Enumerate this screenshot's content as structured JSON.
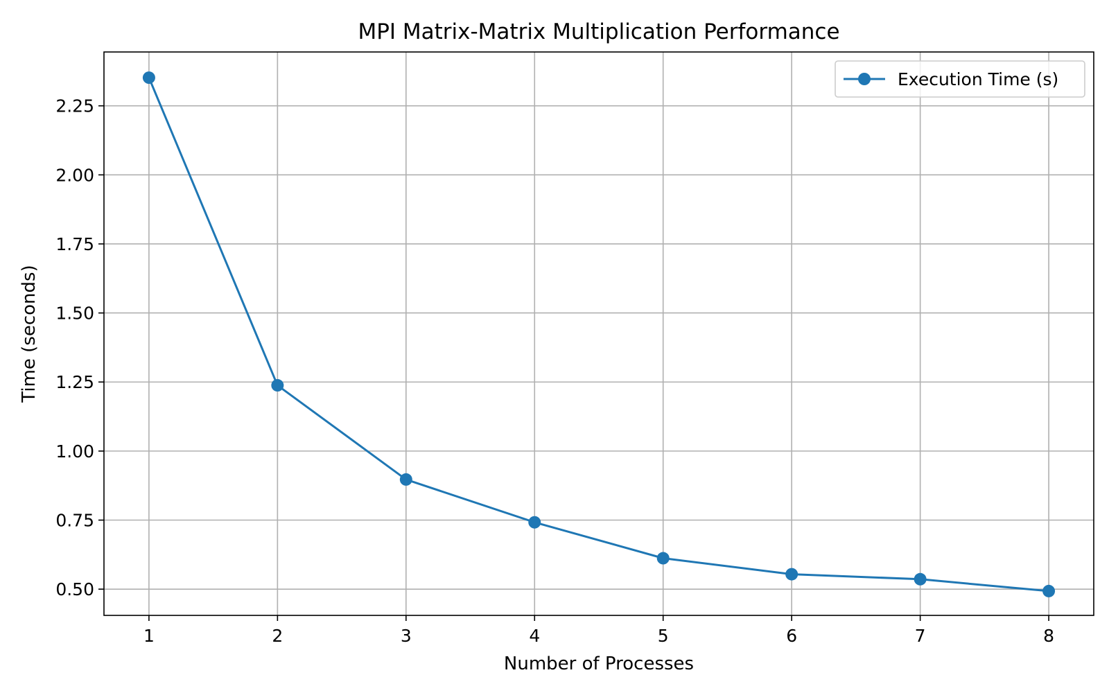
{
  "chart_data": {
    "type": "line",
    "title": "MPI Matrix-Matrix Multiplication Performance",
    "xlabel": "Number of Processes",
    "ylabel": "Time (seconds)",
    "x": [
      1,
      2,
      3,
      4,
      5,
      6,
      7,
      8
    ],
    "series": [
      {
        "name": "Execution Time (s)",
        "values": [
          2.352,
          1.238,
          0.897,
          0.742,
          0.612,
          0.554,
          0.536,
          0.493
        ],
        "color": "#1f77b4",
        "marker": "circle"
      }
    ],
    "xlim": [
      0.65,
      8.35
    ],
    "ylim": [
      0.405,
      2.445
    ],
    "xticks": [
      1,
      2,
      3,
      4,
      5,
      6,
      7,
      8
    ],
    "xtick_labels": [
      "1",
      "2",
      "3",
      "4",
      "5",
      "6",
      "7",
      "8"
    ],
    "yticks": [
      0.5,
      0.75,
      1.0,
      1.25,
      1.5,
      1.75,
      2.0,
      2.25
    ],
    "ytick_labels": [
      "0.50",
      "0.75",
      "1.00",
      "1.25",
      "1.50",
      "1.75",
      "2.00",
      "2.25"
    ],
    "grid": true,
    "legend_position": "top-right"
  }
}
